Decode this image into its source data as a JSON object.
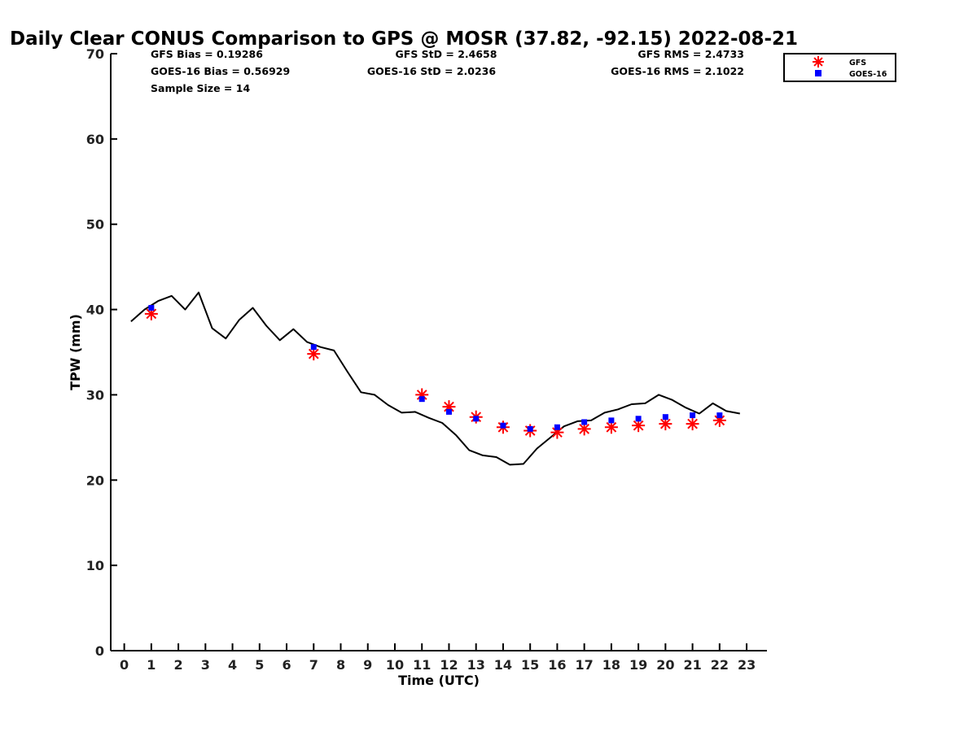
{
  "chart_data": {
    "type": "line",
    "title": "Daily Clear CONUS Comparison to GPS @ MOSR (37.82, -92.15) 2022-08-21",
    "xlabel": "Time (UTC)",
    "ylabel": "TPW (mm)",
    "xlim": [
      -0.5,
      23.75
    ],
    "ylim": [
      0,
      70
    ],
    "xticks": [
      0,
      1,
      2,
      3,
      4,
      5,
      6,
      7,
      8,
      9,
      10,
      11,
      12,
      13,
      14,
      15,
      16,
      17,
      18,
      19,
      20,
      21,
      22,
      23
    ],
    "yticks": [
      0,
      10,
      20,
      30,
      40,
      50,
      60,
      70
    ],
    "stats": [
      "GFS Bias = 0.19286",
      "GFS StD = 2.4658",
      "GFS RMS = 2.4733",
      "GOES-16 Bias = 0.56929",
      "GOES-16 StD = 2.0236",
      "GOES-16 RMS = 2.1022",
      "Sample Size = 14"
    ],
    "legend": {
      "position": "outside-top-right",
      "entries": [
        "GFS",
        "GOES-16"
      ]
    },
    "series": [
      {
        "name": "GPS",
        "style": "line",
        "color": "#000000",
        "x": [
          0.25,
          0.75,
          1.25,
          1.75,
          2.25,
          2.75,
          3.25,
          3.75,
          4.25,
          4.75,
          5.25,
          5.75,
          6.25,
          6.75,
          7.25,
          7.75,
          8.25,
          8.75,
          9.25,
          9.75,
          10.25,
          10.75,
          11.25,
          11.75,
          12.25,
          12.75,
          13.25,
          13.75,
          14.25,
          14.75,
          15.25,
          15.75,
          16.25,
          16.75,
          17.25,
          17.75,
          18.25,
          18.75,
          19.25,
          19.75,
          20.25,
          20.75,
          21.25,
          21.75,
          22.25,
          22.75
        ],
        "y": [
          38.6,
          40.0,
          41.0,
          41.6,
          40.0,
          42.0,
          37.8,
          36.6,
          38.8,
          40.2,
          38.1,
          36.4,
          37.7,
          36.2,
          35.6,
          35.2,
          32.7,
          30.3,
          30.0,
          28.8,
          27.9,
          28.0,
          27.3,
          26.7,
          25.3,
          23.5,
          22.9,
          22.7,
          21.8,
          21.9,
          23.7,
          25.0,
          26.3,
          26.9,
          27.0,
          27.9,
          28.3,
          28.9,
          29.0,
          30.0,
          29.4,
          28.5,
          27.8,
          29.0,
          28.1,
          27.8
        ]
      },
      {
        "name": "GFS",
        "style": "marker-star",
        "color": "#ff0000",
        "x": [
          1,
          7,
          11,
          12,
          13,
          14,
          15,
          16,
          17,
          18,
          19,
          20,
          21,
          22
        ],
        "y": [
          39.5,
          34.8,
          30.0,
          28.6,
          27.4,
          26.2,
          25.8,
          25.6,
          26.0,
          26.2,
          26.4,
          26.6,
          26.6,
          27.0
        ]
      },
      {
        "name": "GOES-16",
        "style": "marker-square",
        "color": "#0000ff",
        "x": [
          1,
          7,
          11,
          12,
          13,
          14,
          15,
          16,
          17,
          18,
          19,
          20,
          21,
          22
        ],
        "y": [
          40.2,
          35.6,
          29.5,
          28.0,
          27.2,
          26.4,
          26.0,
          26.2,
          26.8,
          27.0,
          27.2,
          27.4,
          27.6,
          27.6
        ]
      }
    ]
  }
}
